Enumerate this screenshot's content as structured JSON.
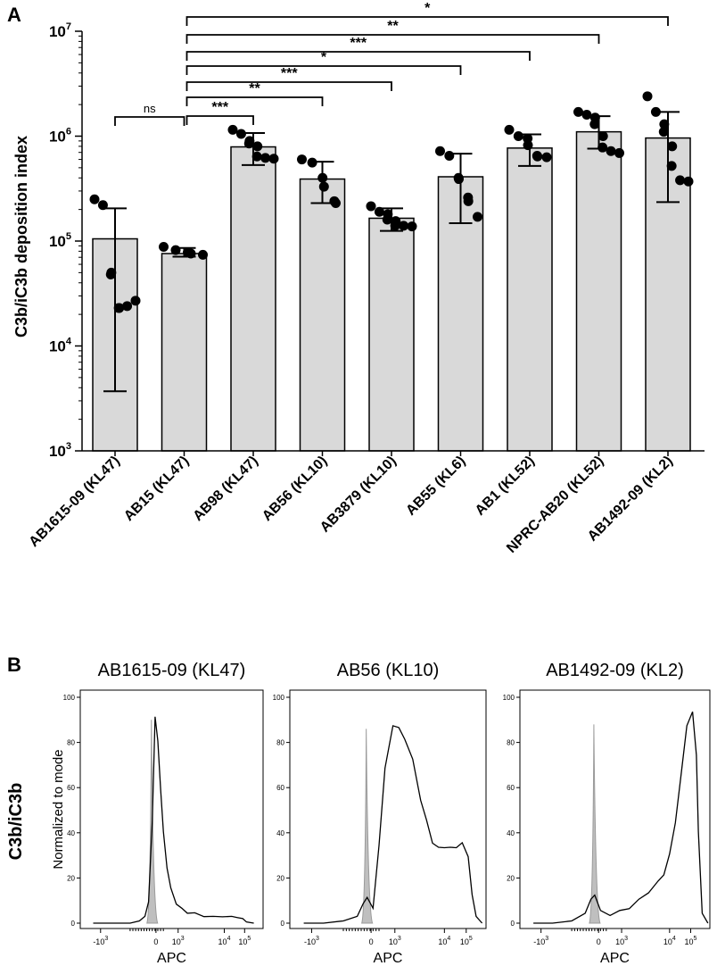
{
  "panel_a": {
    "label": "A",
    "ylabel": "C3b/iC3b deposition index",
    "tick_exponents": [
      "3",
      "4",
      "5",
      "6",
      "7"
    ]
  },
  "panel_b": {
    "label": "B",
    "row_label": "C3b/iC3b",
    "ylabel": "Normalized to mode",
    "xlabel": "APC",
    "y_ticks": [
      "0",
      "20",
      "40",
      "60",
      "80",
      "100"
    ],
    "x_ticks": [
      {
        "base": "-10",
        "exp": "3"
      },
      {
        "base": "0",
        "exp": ""
      },
      {
        "base": "10",
        "exp": "3"
      },
      {
        "base": "10",
        "exp": "4"
      },
      {
        "base": "10",
        "exp": "5"
      }
    ]
  },
  "chart_data": [
    {
      "type": "bar",
      "title": "",
      "ylabel": "C3b/iC3b deposition index",
      "yscale": "log",
      "ylim": [
        1000,
        10000000
      ],
      "categories": [
        "AB1615-09 (KL47)",
        "AB15 (KL47)",
        "AB98 (KL47)",
        "AB56 (KL10)",
        "AB3879 (KL10)",
        "AB55 (KL6)",
        "AB1 (KL52)",
        "NPRC-AB20 (KL52)",
        "AB1492-09 (KL2)"
      ],
      "values": [
        105000,
        76000,
        790000,
        390000,
        165000,
        410000,
        770000,
        1100000,
        960000
      ],
      "error_low": [
        3700,
        71000,
        530000,
        230000,
        125000,
        148000,
        520000,
        760000,
        235000
      ],
      "error_high": [
        205000,
        86000,
        1070000,
        570000,
        205000,
        680000,
        1040000,
        1550000,
        1700000
      ],
      "points": [
        [
          250000,
          220000,
          50000,
          48000,
          23000,
          23000,
          24000,
          27000
        ],
        [
          88000,
          82000,
          78000,
          76000,
          74000
        ],
        [
          1150000,
          1050000,
          900000,
          850000,
          800000,
          640000,
          620000,
          610000
        ],
        [
          600000,
          560000,
          400000,
          330000,
          240000,
          230000
        ],
        [
          215000,
          190000,
          180000,
          160000,
          155000,
          140000,
          140000,
          138000
        ],
        [
          720000,
          650000,
          400000,
          390000,
          260000,
          240000,
          170000
        ],
        [
          1150000,
          1000000,
          950000,
          820000,
          650000,
          640000,
          630000
        ],
        [
          1700000,
          1600000,
          1500000,
          1300000,
          1000000,
          780000,
          720000,
          690000
        ],
        [
          2400000,
          1700000,
          1300000,
          1100000,
          800000,
          520000,
          380000,
          370000
        ]
      ],
      "significance": [
        {
          "from": 0,
          "to": 1,
          "label": "ns"
        },
        {
          "from": 1,
          "to": 2,
          "label": "***"
        },
        {
          "from": 1,
          "to": 3,
          "label": "**"
        },
        {
          "from": 1,
          "to": 4,
          "label": "***"
        },
        {
          "from": 1,
          "to": 5,
          "label": "*"
        },
        {
          "from": 1,
          "to": 6,
          "label": "***"
        },
        {
          "from": 1,
          "to": 7,
          "label": "**"
        },
        {
          "from": 1,
          "to": 8,
          "label": "*"
        }
      ]
    },
    {
      "type": "line",
      "title": "AB1615-09 (KL47)",
      "xlabel": "APC",
      "ylabel": "Normalized to mode",
      "ylim": [
        0,
        100
      ],
      "xscale": "biexponential",
      "isotype_peak": {
        "x": -0.3,
        "y": 90
      },
      "series": [
        {
          "name": "C3b/iC3b",
          "x": [
            -3.5,
            -3.0,
            -2.5,
            -2.0,
            -1.5,
            -1.0,
            -0.7,
            -0.5,
            -0.3,
            -0.15,
            0.0,
            0.15,
            0.3,
            0.5,
            0.7,
            1.0,
            1.3,
            1.6,
            2.0,
            2.5,
            3.0,
            3.5,
            4.0,
            4.3,
            4.6,
            4.8,
            5.2
          ],
          "y": [
            0,
            0,
            0,
            0,
            0,
            1,
            3,
            10,
            45,
            92,
            80,
            60,
            40,
            25,
            15,
            9,
            6,
            5,
            4,
            3.5,
            3,
            2.8,
            3,
            2.5,
            2,
            0.5,
            0
          ]
        }
      ]
    },
    {
      "type": "line",
      "title": "AB56 (KL10)",
      "xlabel": "APC",
      "ylabel": "Normalized to mode",
      "ylim": [
        0,
        100
      ],
      "xscale": "biexponential",
      "isotype_peak": {
        "x": -0.3,
        "y": 86
      },
      "series": [
        {
          "name": "C3b/iC3b",
          "x": [
            -3.5,
            -2.5,
            -1.5,
            -0.8,
            -0.5,
            -0.3,
            0.0,
            0.3,
            0.6,
            1.0,
            1.3,
            1.6,
            2.0,
            2.4,
            2.7,
            3.0,
            3.3,
            3.6,
            3.9,
            4.2,
            4.5,
            4.8,
            5.0,
            5.2,
            5.5
          ],
          "y": [
            0,
            0,
            1,
            3,
            8,
            12,
            6,
            35,
            68,
            88,
            86,
            82,
            72,
            55,
            45,
            36,
            33,
            34,
            33,
            34,
            35,
            30,
            12,
            3,
            0
          ]
        }
      ]
    },
    {
      "type": "line",
      "title": "AB1492-09 (KL2)",
      "xlabel": "APC",
      "ylabel": "Normalized to mode",
      "ylim": [
        0,
        100
      ],
      "xscale": "biexponential",
      "isotype_peak": {
        "x": -0.3,
        "y": 88
      },
      "series": [
        {
          "name": "C3b/iC3b",
          "x": [
            -3.5,
            -2.5,
            -1.5,
            -0.8,
            -0.5,
            -0.3,
            0.0,
            0.5,
            1.0,
            1.5,
            2.0,
            2.5,
            3.0,
            3.3,
            3.6,
            3.9,
            4.2,
            4.5,
            4.8,
            5.0,
            5.1,
            5.3,
            5.6
          ],
          "y": [
            0,
            0,
            1,
            5,
            10,
            13,
            5,
            4,
            5,
            7,
            10,
            14,
            18,
            22,
            30,
            45,
            65,
            88,
            93,
            75,
            40,
            5,
            0
          ]
        }
      ]
    }
  ]
}
